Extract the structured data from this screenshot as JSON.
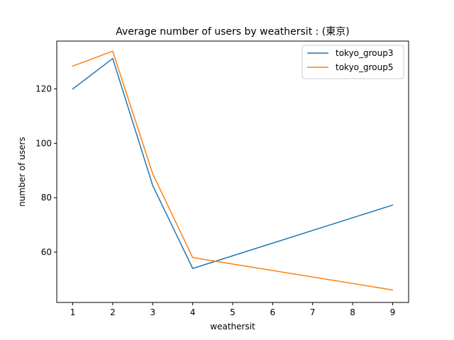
{
  "chart_data": {
    "type": "line",
    "title": "Average number of users by weathersit : (東京)",
    "xlabel": "weathersit",
    "ylabel": "number of users",
    "xlim": [
      0.6,
      9.4
    ],
    "ylim": [
      41.5,
      137.6
    ],
    "xticks": [
      1,
      2,
      3,
      4,
      5,
      6,
      7,
      8,
      9
    ],
    "yticks": [
      60,
      80,
      100,
      120
    ],
    "grid": false,
    "legend_position": "top-right",
    "series": [
      {
        "name": "tokyo_group3",
        "color": "#1f77b4",
        "x": [
          1,
          2,
          3,
          4,
          9
        ],
        "y": [
          120.0,
          131.2,
          84.5,
          54.0,
          77.3
        ]
      },
      {
        "name": "tokyo_group5",
        "color": "#ff7f0e",
        "x": [
          1,
          2,
          3,
          4,
          9
        ],
        "y": [
          128.4,
          133.9,
          88.8,
          58.0,
          46.1
        ]
      }
    ]
  }
}
